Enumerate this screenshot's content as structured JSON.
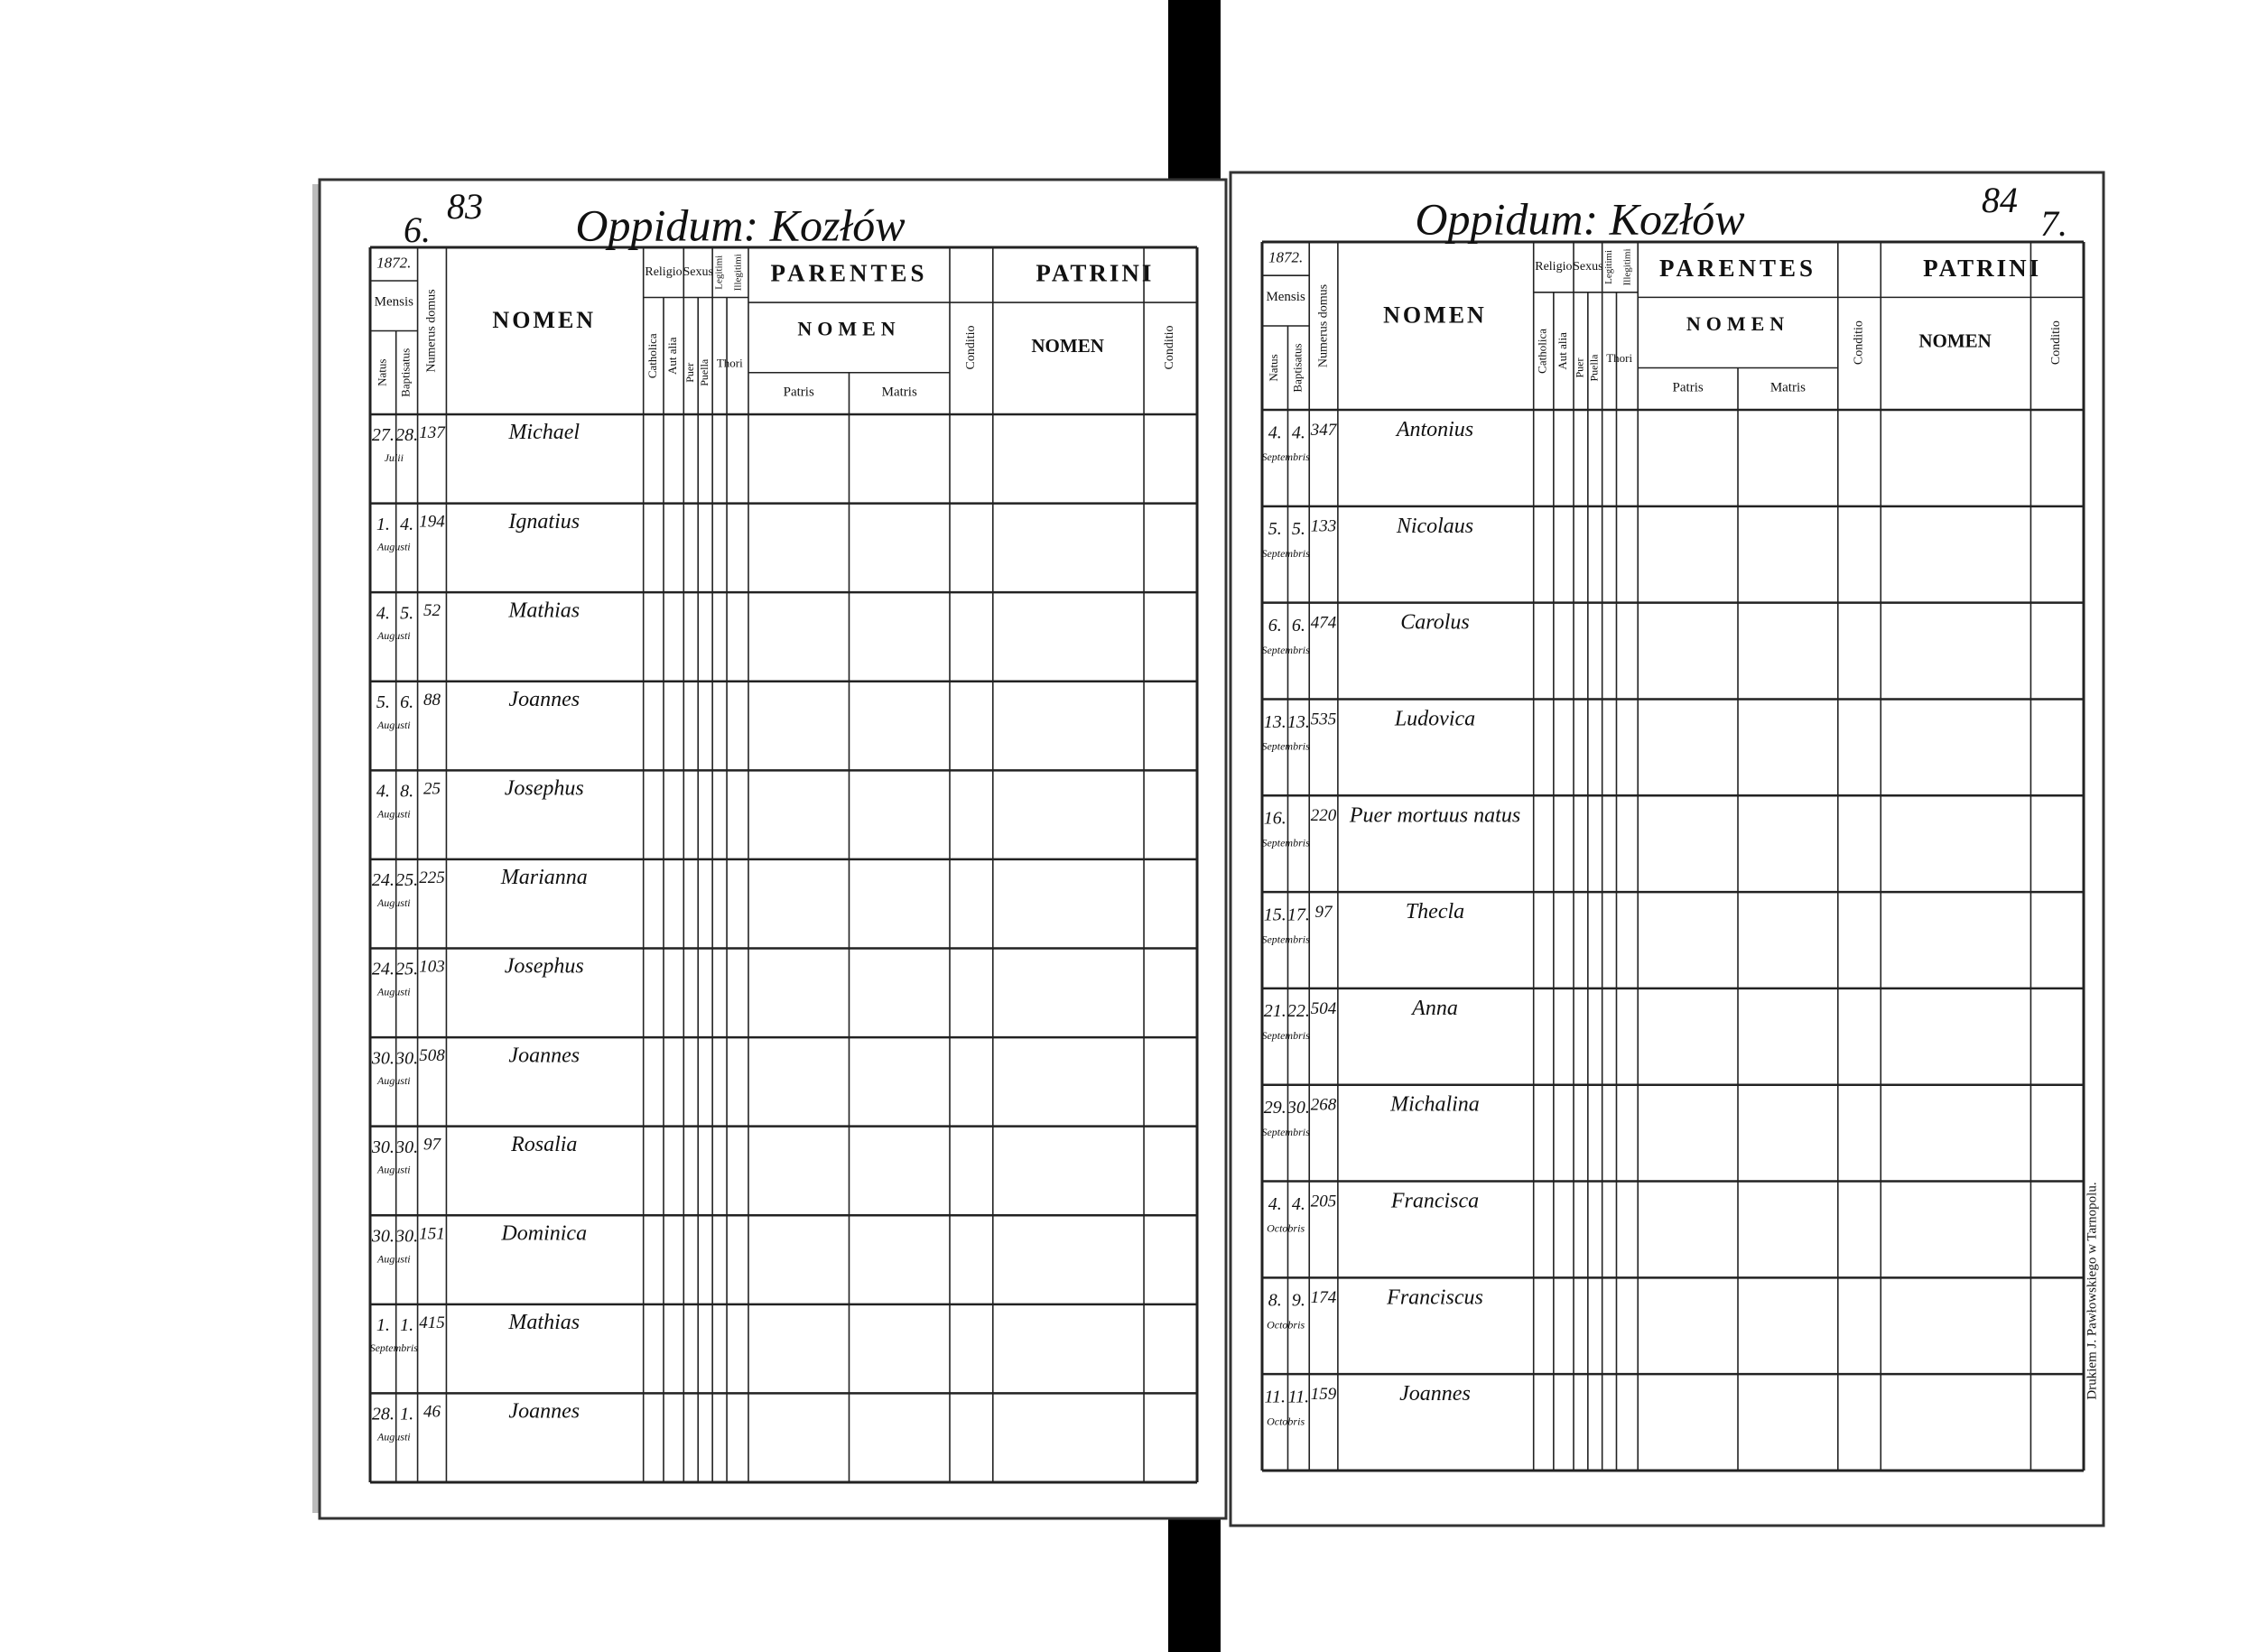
{
  "table_header": {
    "year": "1872.",
    "mensis": "Mensis",
    "natus": "Natus",
    "baptisatus": "Baptisatus",
    "numerus_domus": "Numerus domus",
    "nomen": "NOMEN",
    "religio": "Religio",
    "catholica": "Catholica",
    "aut_alia": "Aut alia",
    "sexus": "Sexus",
    "puer": "Puer",
    "puella": "Puella",
    "legitimi": "Legitimi",
    "illegitimi": "Illegitimi",
    "thori": "Thori",
    "parentes": "PARENTES",
    "parentes_nomen": "NOMEN",
    "patris": "Patris",
    "matris": "Matris",
    "conditio": "Conditio",
    "patrini": "PATRINI",
    "patrini_nomen": "NOMEN"
  },
  "pages": [
    {
      "folio_old": "6.",
      "folio": "83",
      "title": "Oppidum: Kozłów",
      "rows": [
        [
          "27.",
          "28.",
          "Julii",
          "137",
          "Michael"
        ],
        [
          "1.",
          "4.",
          "Augusti",
          "194",
          "Ignatius"
        ],
        [
          "4.",
          "5.",
          "Augusti",
          "52",
          "Mathias"
        ],
        [
          "5.",
          "6.",
          "Augusti",
          "88",
          "Joannes"
        ],
        [
          "4.",
          "8.",
          "Augusti",
          "25",
          "Josephus"
        ],
        [
          "24.",
          "25.",
          "Augusti",
          "225",
          "Marianna"
        ],
        [
          "24.",
          "25.",
          "Augusti",
          "103",
          "Josephus"
        ],
        [
          "30.",
          "30.",
          "Augusti",
          "508",
          "Joannes"
        ],
        [
          "30.",
          "30.",
          "Augusti",
          "97",
          "Rosalia"
        ],
        [
          "30.",
          "30.",
          "Augusti",
          "151",
          "Dominica"
        ],
        [
          "1.",
          "1.",
          "Septembris",
          "415",
          "Mathias"
        ],
        [
          "28.",
          "1.",
          "Augusti",
          "46",
          "Joannes"
        ]
      ]
    },
    {
      "folio_old": "7.",
      "folio": "84",
      "title": "Oppidum: Kozłów",
      "rows": [
        [
          "4.",
          "4.",
          "Septembris",
          "347",
          "Antonius"
        ],
        [
          "5.",
          "5.",
          "Septembris",
          "133",
          "Nicolaus"
        ],
        [
          "6.",
          "6.",
          "Septembris",
          "474",
          "Carolus"
        ],
        [
          "13.",
          "13.",
          "Septembris",
          "535",
          "Ludovica"
        ],
        [
          "16.",
          "",
          "Septembris",
          "220",
          "Puer mortuus natus"
        ],
        [
          "15.",
          "17.",
          "Septembris",
          "97",
          "Thecla"
        ],
        [
          "21.",
          "22.",
          "Septembris",
          "504",
          "Anna"
        ],
        [
          "29.",
          "30.",
          "Septembris",
          "268",
          "Michalina"
        ],
        [
          "4.",
          "4.",
          "Octobris",
          "205",
          "Francisca"
        ],
        [
          "8.",
          "9.",
          "Octobris",
          "174",
          "Franciscus"
        ],
        [
          "11.",
          "11.",
          "Octobris",
          "159",
          "Joannes"
        ]
      ]
    }
  ],
  "printer": "Drukiem J. Pawłowskiego w Tarnopolu."
}
